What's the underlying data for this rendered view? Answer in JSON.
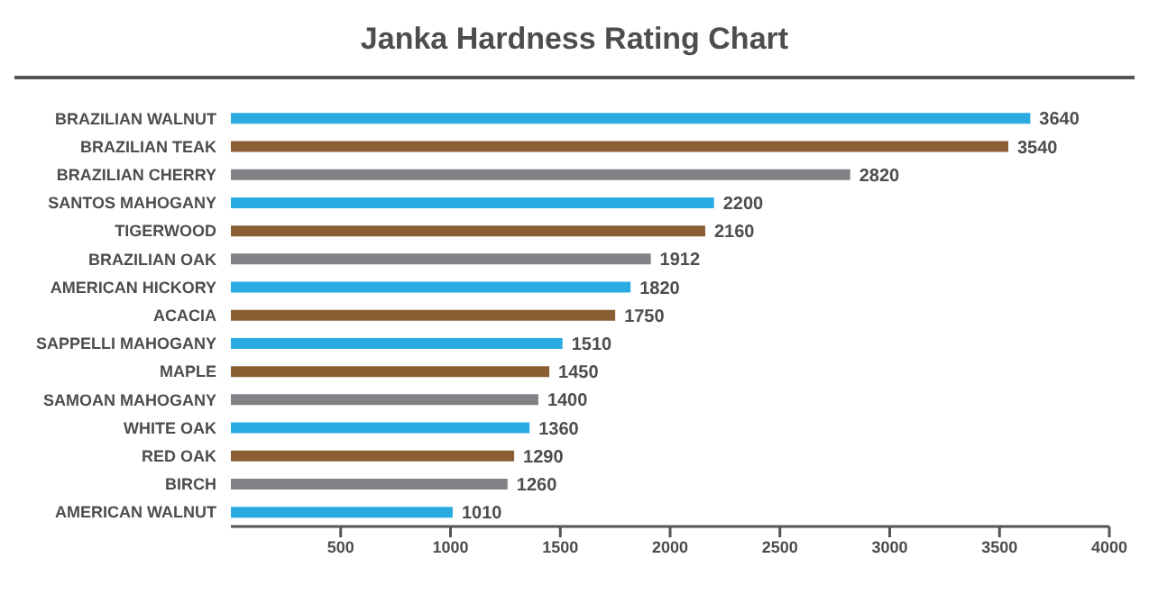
{
  "chart_data": {
    "type": "bar",
    "orientation": "horizontal",
    "title": "Janka Hardness Rating Chart",
    "categories": [
      "BRAZILIAN WALNUT",
      "BRAZILIAN TEAK",
      "BRAZILIAN CHERRY",
      "SANTOS MAHOGANY",
      "TIGERWOOD",
      "BRAZILIAN OAK",
      "AMERICAN HICKORY",
      "ACACIA",
      "SAPPELLI MAHOGANY",
      "MAPLE",
      "SAMOAN MAHOGANY",
      "WHITE OAK",
      "RED OAK",
      "BIRCH",
      "AMERICAN WALNUT"
    ],
    "values": [
      3640,
      3540,
      2820,
      2200,
      2160,
      1912,
      1820,
      1750,
      1510,
      1450,
      1400,
      1360,
      1290,
      1260,
      1010
    ],
    "colors": [
      "#29abe2",
      "#8b5e34",
      "#808285",
      "#29abe2",
      "#8b5e34",
      "#808285",
      "#29abe2",
      "#8b5e34",
      "#29abe2",
      "#8b5e34",
      "#808285",
      "#29abe2",
      "#8b5e34",
      "#808285",
      "#29abe2"
    ],
    "xlim": [
      0,
      4000
    ],
    "xticks": [
      500,
      1000,
      1500,
      2000,
      2500,
      3000,
      3500,
      4000
    ],
    "data_labels": true
  }
}
